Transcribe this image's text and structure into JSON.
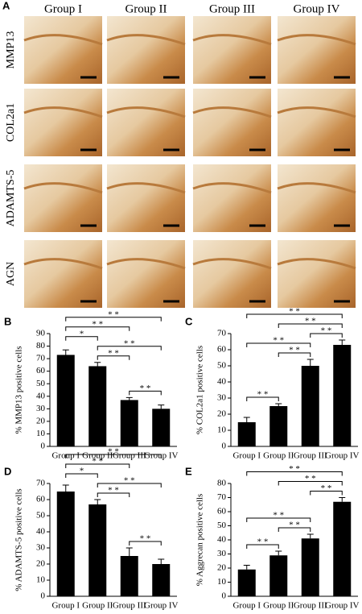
{
  "micrographs": {
    "label": "A",
    "columns": [
      "Group I",
      "Group II",
      "Group III",
      "Group IV"
    ],
    "rows": [
      "MMP13",
      "COL2a1",
      "ADAMTS-5",
      "AGN"
    ]
  },
  "chart_data": [
    {
      "type": "bar",
      "panel": "B",
      "y_label": "% MMP13 positive cells",
      "categories": [
        "Group I",
        "Group II",
        "Group III",
        "Group IV"
      ],
      "values": [
        73,
        64,
        37,
        30
      ],
      "errors": [
        4,
        3,
        2,
        3
      ],
      "color": "#000000",
      "ylim": [
        0,
        90
      ],
      "yticks": [
        0,
        10,
        20,
        30,
        40,
        50,
        60,
        70,
        80,
        90
      ],
      "brackets": [
        {
          "from": "Group III",
          "to": "Group IV",
          "label": "* *"
        },
        {
          "from": "Group II",
          "to": "Group III",
          "label": "* *"
        },
        {
          "from": "Group II",
          "to": "Group IV",
          "label": "* *"
        },
        {
          "from": "Group I",
          "to": "Group II",
          "label": "*"
        },
        {
          "from": "Group I",
          "to": "Group III",
          "label": "* *"
        },
        {
          "from": "Group I",
          "to": "Group IV",
          "label": "* *"
        }
      ]
    },
    {
      "type": "bar",
      "panel": "C",
      "y_label": "% COL2a1 positive cells",
      "categories": [
        "Group I",
        "Group II",
        "Group III",
        "Group IV"
      ],
      "values": [
        15,
        25,
        50,
        63
      ],
      "errors": [
        3,
        1.5,
        4,
        3
      ],
      "color": "#000000",
      "ylim": [
        0,
        70
      ],
      "yticks": [
        0,
        10,
        20,
        30,
        40,
        50,
        60,
        70
      ],
      "brackets": [
        {
          "from": "Group I",
          "to": "Group II",
          "label": "* *"
        },
        {
          "from": "Group II",
          "to": "Group III",
          "label": "* *"
        },
        {
          "from": "Group I",
          "to": "Group III",
          "label": "* *"
        },
        {
          "from": "Group III",
          "to": "Group IV",
          "label": "* *"
        },
        {
          "from": "Group II",
          "to": "Group IV",
          "label": "* *"
        },
        {
          "from": "Group I",
          "to": "Group IV",
          "label": "* *"
        }
      ]
    },
    {
      "type": "bar",
      "panel": "D",
      "y_label": "% ADAMTS-5 positive cells",
      "categories": [
        "Group I",
        "Group II",
        "Group III",
        "Group IV"
      ],
      "values": [
        65,
        57,
        25,
        20
      ],
      "errors": [
        4,
        3,
        5,
        3
      ],
      "color": "#000000",
      "ylim": [
        0,
        70
      ],
      "yticks": [
        0,
        10,
        20,
        30,
        40,
        50,
        60,
        70
      ],
      "brackets": [
        {
          "from": "Group III",
          "to": "Group IV",
          "label": "* *"
        },
        {
          "from": "Group II",
          "to": "Group III",
          "label": "* *"
        },
        {
          "from": "Group II",
          "to": "Group IV",
          "label": "* *"
        },
        {
          "from": "Group I",
          "to": "Group II",
          "label": "*"
        },
        {
          "from": "Group I",
          "to": "Group III",
          "label": "* *"
        },
        {
          "from": "Group I",
          "to": "Group IV",
          "label": "* *"
        }
      ]
    },
    {
      "type": "bar",
      "panel": "E",
      "y_label": "% Aggrecan positive cells",
      "categories": [
        "Group I",
        "Group II",
        "Group III",
        "Group IV"
      ],
      "values": [
        19,
        29,
        41,
        67
      ],
      "errors": [
        3,
        3,
        3,
        3
      ],
      "color": "#000000",
      "ylim": [
        0,
        80
      ],
      "yticks": [
        0,
        10,
        20,
        30,
        40,
        50,
        60,
        70,
        80
      ],
      "brackets": [
        {
          "from": "Group I",
          "to": "Group II",
          "label": "* *"
        },
        {
          "from": "Group II",
          "to": "Group III",
          "label": "* *"
        },
        {
          "from": "Group I",
          "to": "Group III",
          "label": "* *"
        },
        {
          "from": "Group III",
          "to": "Group IV",
          "label": "* *"
        },
        {
          "from": "Group II",
          "to": "Group IV",
          "label": "* *"
        },
        {
          "from": "Group I",
          "to": "Group IV",
          "label": "* *"
        }
      ]
    }
  ]
}
